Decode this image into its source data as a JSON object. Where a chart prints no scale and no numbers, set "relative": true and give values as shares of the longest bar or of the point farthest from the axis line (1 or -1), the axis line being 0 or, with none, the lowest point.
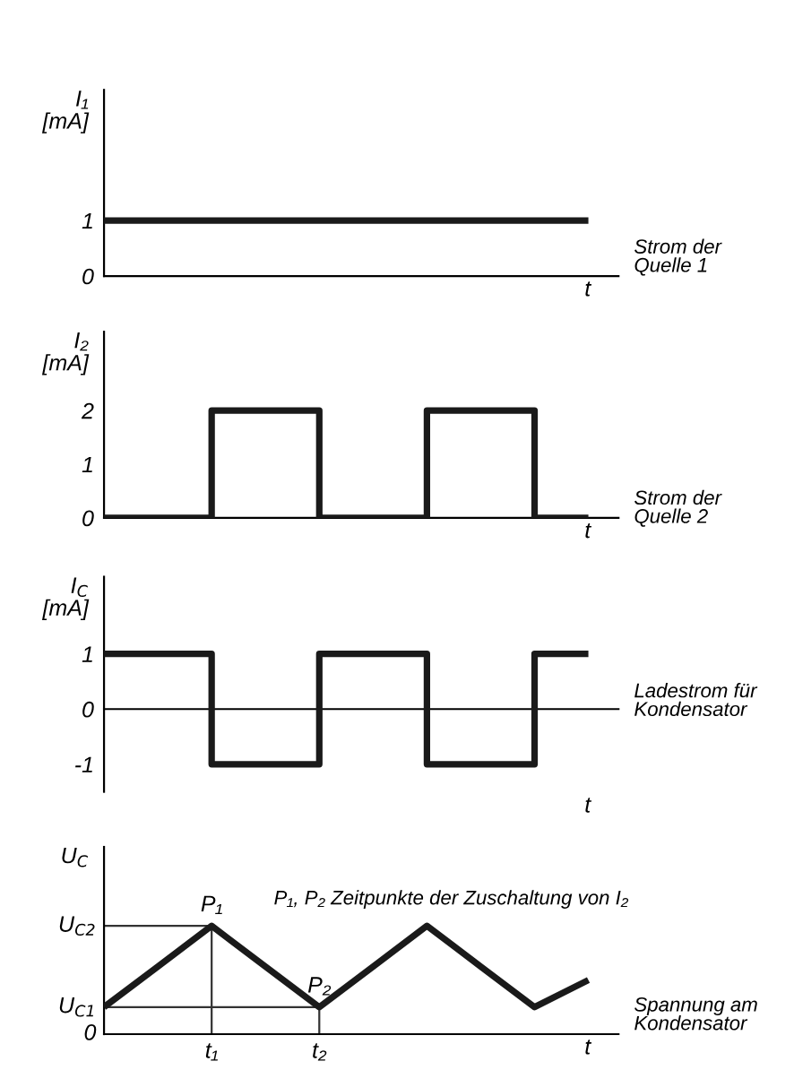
{
  "chart_data": [
    {
      "type": "line",
      "ylabel": "I₁\n[mA]",
      "xlabel": "t",
      "ylim": [
        0,
        3.35
      ],
      "yticks": [
        0,
        1
      ],
      "categories": [
        null,
        null,
        null,
        null,
        null,
        null,
        null,
        null,
        null,
        null
      ],
      "series": [
        {
          "color": "#1a1a1a",
          "values": [
            1,
            1,
            1,
            1,
            1,
            1,
            1,
            1,
            1,
            1
          ]
        }
      ],
      "annotations": [
        "Strom der\nQuelle 1"
      ]
    },
    {
      "type": "step",
      "ylabel": "I₂\n[mA]",
      "xlabel": "t",
      "ylim": [
        0,
        3.47
      ],
      "yticks": [
        0,
        1,
        2
      ],
      "categories": [
        null,
        null,
        null,
        null,
        null,
        null,
        null,
        null,
        null,
        null
      ],
      "series": [
        {
          "color": "#1a1a1a",
          "values": [
            0,
            0,
            2,
            2,
            0,
            0,
            2,
            2,
            0,
            0
          ]
        }
      ],
      "annotations": [
        "Strom der\nQuelle 2"
      ]
    },
    {
      "type": "step",
      "ylabel": "I$_{C}$\n[mA]",
      "xlabel": "t",
      "ylim": [
        -1.5,
        2.4
      ],
      "yticks": [
        {
          "value": -1,
          "label": "-1"
        },
        0,
        1
      ],
      "categories": [
        null,
        null,
        null,
        null,
        null,
        null,
        null,
        null,
        null,
        null
      ],
      "series": [
        {
          "color": "#1a1a1a",
          "values": [
            1,
            1,
            -1,
            -1,
            1,
            1,
            -1,
            -1,
            1,
            1
          ]
        }
      ],
      "annotations": [
        "Ladestrom für\nKondensator"
      ]
    },
    {
      "type": "line",
      "relative": true,
      "ylabel": "U$_{C}$",
      "xlabel": "t",
      "categories": [
        null,
        null,
        "t₁",
        null,
        "t₂",
        null,
        null,
        null,
        null,
        null
      ],
      "series": [
        {
          "color": "#1a1a1a",
          "values": [
            0.25,
            0.625,
            1,
            0.625,
            0.25,
            0.625,
            1,
            0.625,
            0.25,
            0.5
          ]
        }
      ],
      "annotations": [
        "P₁, P₂ Zeitpunkte der Zuschaltung von I₂",
        {
          "text": "P₁",
          "x": "t₁",
          "y": 1
        },
        {
          "text": "P₂",
          "x": "t₂",
          "y": 0.25
        },
        "U$_{C2}$",
        "U$_{C1}$",
        "0",
        "Spannung am\nKondensator"
      ]
    }
  ]
}
